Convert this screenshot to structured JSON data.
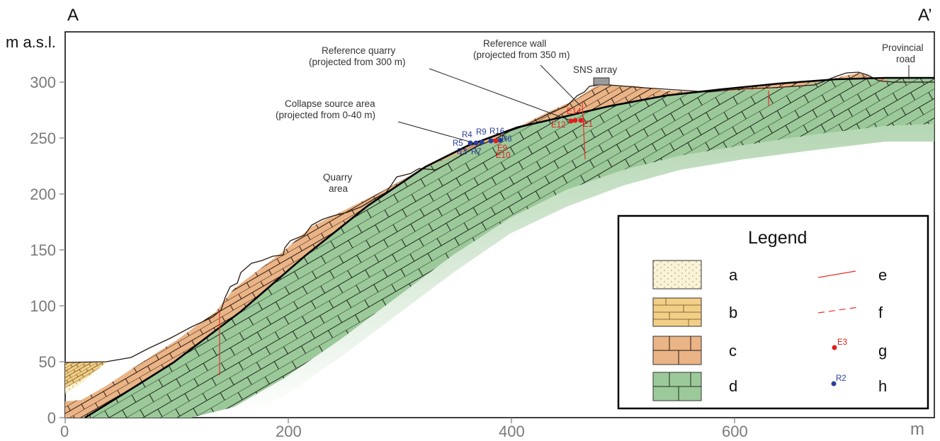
{
  "section": {
    "start_label": "A",
    "end_label": "A’",
    "y_unit": "m a.s.l.",
    "x_unit": "m"
  },
  "axes": {
    "x_ticks": [
      "0",
      "200",
      "400",
      "600"
    ],
    "y_ticks": [
      "0",
      "50",
      "100",
      "150",
      "200",
      "250",
      "300"
    ],
    "x_tick_values": [
      0,
      200,
      400,
      600
    ],
    "y_tick_values": [
      0,
      50,
      100,
      150,
      200,
      250,
      300
    ]
  },
  "annotations": {
    "reference_quarry": [
      "Reference quarry",
      "(projected from 300 m)"
    ],
    "reference_wall": [
      "Reference wall",
      "(projected from 350 m)"
    ],
    "sns_array": "SNS array",
    "provincial_road": [
      "Provincial",
      "road"
    ],
    "collapse_source": [
      "Collapse source area",
      "(projected from 0-40 m)"
    ],
    "quarry_area": [
      "Quarry",
      "area"
    ]
  },
  "points": {
    "blue": [
      "R4",
      "R9",
      "R16",
      "R5",
      "R3",
      "R7",
      "R6"
    ],
    "red": [
      "E14",
      "E12",
      "E1",
      "E9",
      "E10"
    ]
  },
  "legend": {
    "title": "Legend",
    "items": [
      {
        "key": "a",
        "type": "lithology"
      },
      {
        "key": "b",
        "type": "lithology"
      },
      {
        "key": "c",
        "type": "lithology"
      },
      {
        "key": "d",
        "type": "lithology"
      },
      {
        "key": "e",
        "type": "fault"
      },
      {
        "key": "f",
        "type": "inferred fault"
      },
      {
        "key": "g",
        "type": "point",
        "sample": "E3"
      },
      {
        "key": "h",
        "type": "point",
        "sample": "R2"
      }
    ]
  },
  "colors": {
    "layer_a": "#fbf3d6",
    "layer_b": "#f1cf86",
    "layer_c": "#eab487",
    "layer_d": "#9cc99a",
    "fault": "#e8322a",
    "blue_point": "#2a3f99",
    "red_point": "#e01d1d",
    "axis": "#7a7a7a"
  }
}
